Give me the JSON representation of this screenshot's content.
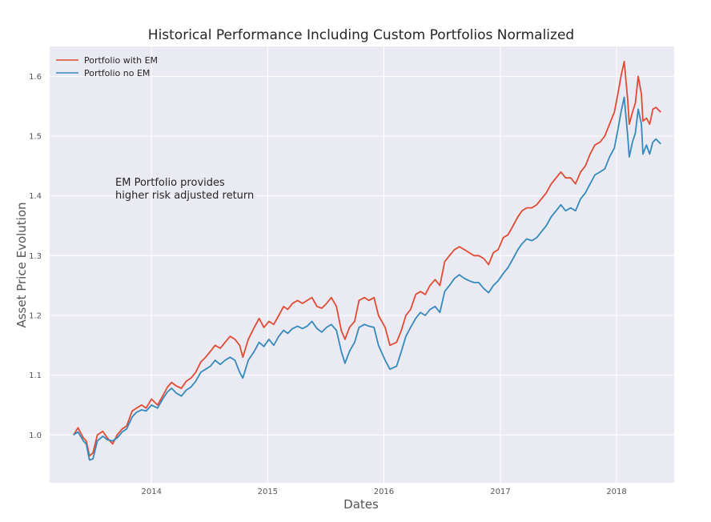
{
  "chart_data": {
    "type": "line",
    "title": "Historical Performance Including Custom Portfolios Normalized",
    "xlabel": "Dates",
    "ylabel": "Asset Price Evolution",
    "x_ticks": [
      "2014",
      "2015",
      "2016",
      "2017",
      "2018"
    ],
    "y_ticks": [
      "1.0",
      "1.1",
      "1.2",
      "1.3",
      "1.4",
      "1.5",
      "1.6"
    ],
    "ylim": [
      0.92,
      1.65
    ],
    "xlim": [
      "2013-02-15",
      "2018-07-01"
    ],
    "grid": true,
    "legend_position": "top-left",
    "annotation": [
      "EM Portfolio provides",
      "higher risk adjusted return"
    ],
    "colors": {
      "background": "#eaeaf2",
      "grid": "#ffffff"
    },
    "series": [
      {
        "name": "Portfolio with EM",
        "color": "#e24a33",
        "points": [
          [
            "2013-05-01",
            1.0
          ],
          [
            "2013-05-15",
            1.012
          ],
          [
            "2013-06-01",
            0.995
          ],
          [
            "2013-06-10",
            0.99
          ],
          [
            "2013-06-20",
            0.965
          ],
          [
            "2013-07-01",
            0.97
          ],
          [
            "2013-07-15",
            1.0
          ],
          [
            "2013-08-01",
            1.006
          ],
          [
            "2013-08-15",
            0.995
          ],
          [
            "2013-09-01",
            0.985
          ],
          [
            "2013-09-15",
            1.0
          ],
          [
            "2013-10-01",
            1.01
          ],
          [
            "2013-10-15",
            1.015
          ],
          [
            "2013-11-01",
            1.04
          ],
          [
            "2013-11-15",
            1.045
          ],
          [
            "2013-12-01",
            1.05
          ],
          [
            "2013-12-15",
            1.045
          ],
          [
            "2014-01-01",
            1.06
          ],
          [
            "2014-01-20",
            1.05
          ],
          [
            "2014-02-05",
            1.065
          ],
          [
            "2014-02-20",
            1.08
          ],
          [
            "2014-03-05",
            1.088
          ],
          [
            "2014-03-20",
            1.082
          ],
          [
            "2014-04-05",
            1.078
          ],
          [
            "2014-04-20",
            1.09
          ],
          [
            "2014-05-05",
            1.095
          ],
          [
            "2014-05-20",
            1.105
          ],
          [
            "2014-06-05",
            1.122
          ],
          [
            "2014-06-20",
            1.13
          ],
          [
            "2014-07-05",
            1.14
          ],
          [
            "2014-07-20",
            1.15
          ],
          [
            "2014-08-05",
            1.145
          ],
          [
            "2014-08-20",
            1.155
          ],
          [
            "2014-09-05",
            1.165
          ],
          [
            "2014-09-20",
            1.16
          ],
          [
            "2014-10-05",
            1.15
          ],
          [
            "2014-10-15",
            1.13
          ],
          [
            "2014-11-01",
            1.16
          ],
          [
            "2014-11-20",
            1.18
          ],
          [
            "2014-12-05",
            1.195
          ],
          [
            "2014-12-20",
            1.18
          ],
          [
            "2015-01-05",
            1.19
          ],
          [
            "2015-01-20",
            1.185
          ],
          [
            "2015-02-05",
            1.2
          ],
          [
            "2015-02-20",
            1.215
          ],
          [
            "2015-03-05",
            1.21
          ],
          [
            "2015-03-20",
            1.22
          ],
          [
            "2015-04-05",
            1.225
          ],
          [
            "2015-04-20",
            1.22
          ],
          [
            "2015-05-05",
            1.225
          ],
          [
            "2015-05-20",
            1.23
          ],
          [
            "2015-06-05",
            1.215
          ],
          [
            "2015-06-20",
            1.212
          ],
          [
            "2015-07-05",
            1.22
          ],
          [
            "2015-07-20",
            1.23
          ],
          [
            "2015-08-05",
            1.215
          ],
          [
            "2015-08-20",
            1.175
          ],
          [
            "2015-09-01",
            1.16
          ],
          [
            "2015-09-15",
            1.18
          ],
          [
            "2015-10-01",
            1.19
          ],
          [
            "2015-10-15",
            1.225
          ],
          [
            "2015-11-01",
            1.23
          ],
          [
            "2015-11-15",
            1.225
          ],
          [
            "2015-12-01",
            1.23
          ],
          [
            "2015-12-15",
            1.2
          ],
          [
            "2016-01-05",
            1.18
          ],
          [
            "2016-01-20",
            1.15
          ],
          [
            "2016-02-10",
            1.155
          ],
          [
            "2016-02-25",
            1.175
          ],
          [
            "2016-03-10",
            1.2
          ],
          [
            "2016-03-25",
            1.21
          ],
          [
            "2016-04-10",
            1.235
          ],
          [
            "2016-04-25",
            1.24
          ],
          [
            "2016-05-10",
            1.235
          ],
          [
            "2016-05-25",
            1.25
          ],
          [
            "2016-06-10",
            1.26
          ],
          [
            "2016-06-25",
            1.25
          ],
          [
            "2016-07-10",
            1.29
          ],
          [
            "2016-07-25",
            1.3
          ],
          [
            "2016-08-10",
            1.31
          ],
          [
            "2016-08-25",
            1.315
          ],
          [
            "2016-09-10",
            1.31
          ],
          [
            "2016-09-25",
            1.305
          ],
          [
            "2016-10-10",
            1.3
          ],
          [
            "2016-10-25",
            1.3
          ],
          [
            "2016-11-10",
            1.295
          ],
          [
            "2016-11-25",
            1.285
          ],
          [
            "2016-12-10",
            1.305
          ],
          [
            "2016-12-25",
            1.31
          ],
          [
            "2017-01-10",
            1.33
          ],
          [
            "2017-01-25",
            1.335
          ],
          [
            "2017-02-10",
            1.35
          ],
          [
            "2017-02-25",
            1.365
          ],
          [
            "2017-03-10",
            1.375
          ],
          [
            "2017-03-25",
            1.38
          ],
          [
            "2017-04-10",
            1.38
          ],
          [
            "2017-04-25",
            1.385
          ],
          [
            "2017-05-10",
            1.395
          ],
          [
            "2017-05-25",
            1.405
          ],
          [
            "2017-06-10",
            1.42
          ],
          [
            "2017-06-25",
            1.43
          ],
          [
            "2017-07-10",
            1.44
          ],
          [
            "2017-07-25",
            1.43
          ],
          [
            "2017-08-10",
            1.43
          ],
          [
            "2017-08-25",
            1.42
          ],
          [
            "2017-09-10",
            1.44
          ],
          [
            "2017-09-25",
            1.45
          ],
          [
            "2017-10-10",
            1.47
          ],
          [
            "2017-10-25",
            1.485
          ],
          [
            "2017-11-10",
            1.49
          ],
          [
            "2017-11-25",
            1.5
          ],
          [
            "2017-12-10",
            1.52
          ],
          [
            "2017-12-25",
            1.54
          ],
          [
            "2018-01-05",
            1.57
          ],
          [
            "2018-01-15",
            1.6
          ],
          [
            "2018-01-25",
            1.625
          ],
          [
            "2018-02-05",
            1.56
          ],
          [
            "2018-02-10",
            1.52
          ],
          [
            "2018-02-20",
            1.54
          ],
          [
            "2018-03-01",
            1.555
          ],
          [
            "2018-03-10",
            1.6
          ],
          [
            "2018-03-20",
            1.57
          ],
          [
            "2018-03-25",
            1.525
          ],
          [
            "2018-04-05",
            1.53
          ],
          [
            "2018-04-15",
            1.52
          ],
          [
            "2018-04-25",
            1.545
          ],
          [
            "2018-05-05",
            1.548
          ],
          [
            "2018-05-20",
            1.54
          ]
        ]
      },
      {
        "name": "Portfolio no EM",
        "color": "#348abd",
        "points": [
          [
            "2013-05-01",
            1.0
          ],
          [
            "2013-05-15",
            1.005
          ],
          [
            "2013-06-01",
            0.99
          ],
          [
            "2013-06-10",
            0.985
          ],
          [
            "2013-06-20",
            0.958
          ],
          [
            "2013-07-01",
            0.96
          ],
          [
            "2013-07-15",
            0.99
          ],
          [
            "2013-08-01",
            0.998
          ],
          [
            "2013-08-15",
            0.992
          ],
          [
            "2013-09-01",
            0.99
          ],
          [
            "2013-09-15",
            0.995
          ],
          [
            "2013-10-01",
            1.005
          ],
          [
            "2013-10-15",
            1.01
          ],
          [
            "2013-11-01",
            1.03
          ],
          [
            "2013-11-15",
            1.038
          ],
          [
            "2013-12-01",
            1.042
          ],
          [
            "2013-12-15",
            1.04
          ],
          [
            "2014-01-01",
            1.05
          ],
          [
            "2014-01-20",
            1.045
          ],
          [
            "2014-02-05",
            1.06
          ],
          [
            "2014-02-20",
            1.072
          ],
          [
            "2014-03-05",
            1.078
          ],
          [
            "2014-03-20",
            1.07
          ],
          [
            "2014-04-05",
            1.065
          ],
          [
            "2014-04-20",
            1.075
          ],
          [
            "2014-05-05",
            1.08
          ],
          [
            "2014-05-20",
            1.09
          ],
          [
            "2014-06-05",
            1.105
          ],
          [
            "2014-06-20",
            1.11
          ],
          [
            "2014-07-05",
            1.115
          ],
          [
            "2014-07-20",
            1.125
          ],
          [
            "2014-08-05",
            1.118
          ],
          [
            "2014-08-20",
            1.125
          ],
          [
            "2014-09-05",
            1.13
          ],
          [
            "2014-09-20",
            1.125
          ],
          [
            "2014-10-05",
            1.105
          ],
          [
            "2014-10-15",
            1.095
          ],
          [
            "2014-11-01",
            1.125
          ],
          [
            "2014-11-20",
            1.14
          ],
          [
            "2014-12-05",
            1.155
          ],
          [
            "2014-12-20",
            1.148
          ],
          [
            "2015-01-05",
            1.16
          ],
          [
            "2015-01-20",
            1.15
          ],
          [
            "2015-02-05",
            1.165
          ],
          [
            "2015-02-20",
            1.175
          ],
          [
            "2015-03-05",
            1.17
          ],
          [
            "2015-03-20",
            1.178
          ],
          [
            "2015-04-05",
            1.182
          ],
          [
            "2015-04-20",
            1.178
          ],
          [
            "2015-05-05",
            1.182
          ],
          [
            "2015-05-20",
            1.19
          ],
          [
            "2015-06-05",
            1.178
          ],
          [
            "2015-06-20",
            1.172
          ],
          [
            "2015-07-05",
            1.18
          ],
          [
            "2015-07-20",
            1.185
          ],
          [
            "2015-08-05",
            1.175
          ],
          [
            "2015-08-20",
            1.14
          ],
          [
            "2015-09-01",
            1.12
          ],
          [
            "2015-09-15",
            1.14
          ],
          [
            "2015-10-01",
            1.155
          ],
          [
            "2015-10-15",
            1.18
          ],
          [
            "2015-11-01",
            1.185
          ],
          [
            "2015-11-15",
            1.182
          ],
          [
            "2015-12-01",
            1.18
          ],
          [
            "2015-12-15",
            1.15
          ],
          [
            "2016-01-05",
            1.125
          ],
          [
            "2016-01-20",
            1.11
          ],
          [
            "2016-02-10",
            1.115
          ],
          [
            "2016-02-25",
            1.14
          ],
          [
            "2016-03-10",
            1.165
          ],
          [
            "2016-03-25",
            1.18
          ],
          [
            "2016-04-10",
            1.195
          ],
          [
            "2016-04-25",
            1.205
          ],
          [
            "2016-05-10",
            1.2
          ],
          [
            "2016-05-25",
            1.21
          ],
          [
            "2016-06-10",
            1.215
          ],
          [
            "2016-06-25",
            1.205
          ],
          [
            "2016-07-10",
            1.24
          ],
          [
            "2016-07-25",
            1.25
          ],
          [
            "2016-08-10",
            1.262
          ],
          [
            "2016-08-25",
            1.268
          ],
          [
            "2016-09-10",
            1.262
          ],
          [
            "2016-09-25",
            1.258
          ],
          [
            "2016-10-10",
            1.255
          ],
          [
            "2016-10-25",
            1.255
          ],
          [
            "2016-11-10",
            1.245
          ],
          [
            "2016-11-25",
            1.238
          ],
          [
            "2016-12-10",
            1.25
          ],
          [
            "2016-12-25",
            1.258
          ],
          [
            "2017-01-10",
            1.27
          ],
          [
            "2017-01-25",
            1.28
          ],
          [
            "2017-02-10",
            1.295
          ],
          [
            "2017-02-25",
            1.31
          ],
          [
            "2017-03-10",
            1.32
          ],
          [
            "2017-03-25",
            1.328
          ],
          [
            "2017-04-10",
            1.325
          ],
          [
            "2017-04-25",
            1.33
          ],
          [
            "2017-05-10",
            1.34
          ],
          [
            "2017-05-25",
            1.35
          ],
          [
            "2017-06-10",
            1.365
          ],
          [
            "2017-06-25",
            1.375
          ],
          [
            "2017-07-10",
            1.385
          ],
          [
            "2017-07-25",
            1.375
          ],
          [
            "2017-08-10",
            1.38
          ],
          [
            "2017-08-25",
            1.375
          ],
          [
            "2017-09-10",
            1.395
          ],
          [
            "2017-09-25",
            1.405
          ],
          [
            "2017-10-10",
            1.42
          ],
          [
            "2017-10-25",
            1.435
          ],
          [
            "2017-11-10",
            1.44
          ],
          [
            "2017-11-25",
            1.445
          ],
          [
            "2017-12-10",
            1.465
          ],
          [
            "2017-12-25",
            1.48
          ],
          [
            "2018-01-05",
            1.51
          ],
          [
            "2018-01-15",
            1.54
          ],
          [
            "2018-01-25",
            1.565
          ],
          [
            "2018-02-05",
            1.5
          ],
          [
            "2018-02-10",
            1.465
          ],
          [
            "2018-02-20",
            1.49
          ],
          [
            "2018-03-01",
            1.505
          ],
          [
            "2018-03-10",
            1.545
          ],
          [
            "2018-03-20",
            1.52
          ],
          [
            "2018-03-25",
            1.47
          ],
          [
            "2018-04-05",
            1.485
          ],
          [
            "2018-04-15",
            1.47
          ],
          [
            "2018-04-25",
            1.49
          ],
          [
            "2018-05-05",
            1.495
          ],
          [
            "2018-05-20",
            1.487
          ]
        ]
      }
    ]
  }
}
